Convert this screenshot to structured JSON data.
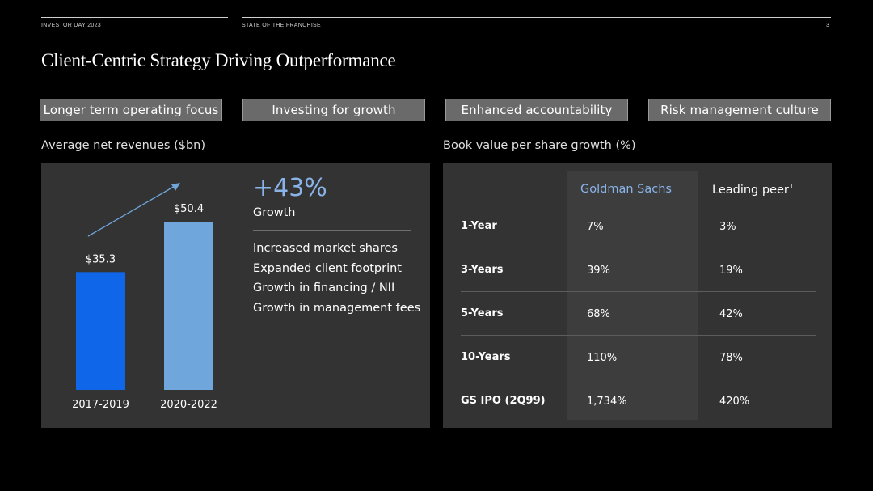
{
  "header": {
    "left": "INVESTOR DAY 2023",
    "middle": "STATE OF THE FRANCHISE",
    "page_number": "3"
  },
  "title": "Client-Centric Strategy Driving Outperformance",
  "pillars": [
    "Longer term operating focus",
    "Investing for growth",
    "Enhanced accountability",
    "Risk management culture"
  ],
  "left_panel": {
    "subtitle": "Average net revenues ($bn)",
    "growth_value": "+43%",
    "growth_label": "Growth",
    "bullets": [
      "Increased market shares",
      "Expanded client footprint",
      "Growth in financing / NII",
      "Growth in management fees"
    ]
  },
  "right_panel": {
    "subtitle": "Book value per share growth (%)",
    "col_gs": "Goldman Sachs",
    "col_peer": "Leading peer",
    "col_peer_footnote": "1",
    "rows": [
      {
        "label": "1-Year",
        "gs": "7%",
        "peer": "3%"
      },
      {
        "label": "3-Years",
        "gs": "39%",
        "peer": "19%"
      },
      {
        "label": "5-Years",
        "gs": "68%",
        "peer": "42%"
      },
      {
        "label": "10-Years",
        "gs": "110%",
        "peer": "78%"
      },
      {
        "label": "GS IPO (2Q99)",
        "gs": "1,734%",
        "peer": "420%"
      }
    ]
  },
  "chart_data": {
    "type": "bar",
    "title": "Average net revenues ($bn)",
    "categories": [
      "2017-2019",
      "2020-2022"
    ],
    "values": [
      35.3,
      50.4
    ],
    "value_labels": [
      "$35.3",
      "$50.4"
    ],
    "colors": [
      "#0f66e8",
      "#6fa6dc"
    ],
    "xlabel": "",
    "ylabel": "",
    "ylim": [
      0,
      60
    ],
    "grid": false,
    "legend": "none",
    "annotation": "growth arrow"
  },
  "colors": {
    "background": "#000000",
    "panel": "#333333",
    "accent_blue": "#8ab4e8",
    "pill": "#6a6a6a"
  }
}
